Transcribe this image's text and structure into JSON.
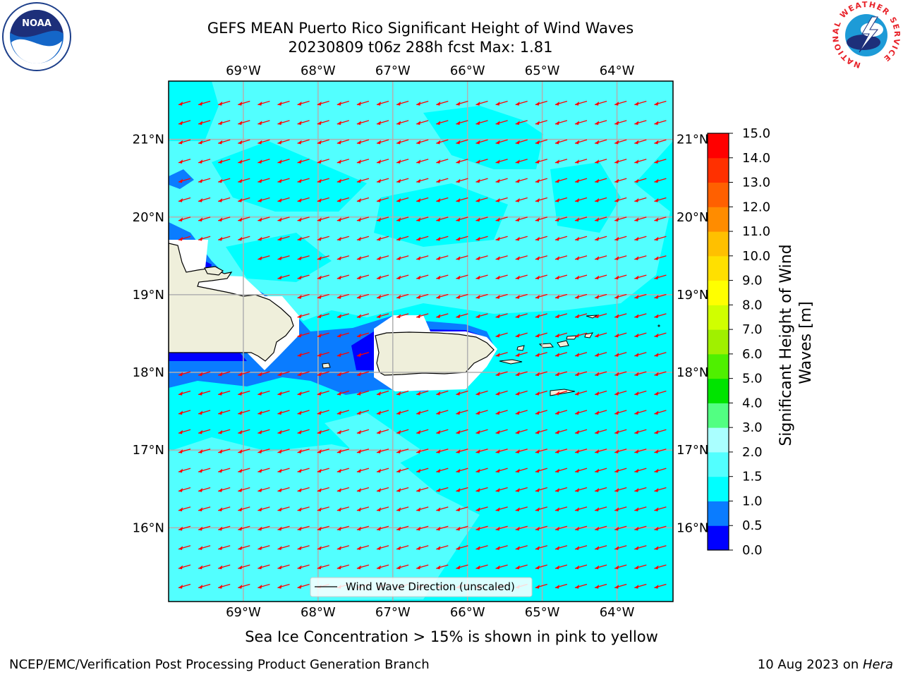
{
  "title": {
    "line1": "GEFS MEAN Puerto Rico Significant Height of Wind Waves",
    "line2": "20230809 t06z 288h fcst   Max: 1.81"
  },
  "logos": {
    "left": "noaa-logo",
    "right": "national-weather-service-logo",
    "nws_ring_text": "NATIONAL WEATHER SERVICE",
    "noaa_text": "NOAA"
  },
  "map": {
    "lon_labels": [
      "69°W",
      "68°W",
      "67°W",
      "66°W",
      "65°W",
      "64°W"
    ],
    "lon_values": [
      -69,
      -68,
      -67,
      -66,
      -65,
      -64
    ],
    "lat_labels": [
      "21°N",
      "20°N",
      "19°N",
      "18°N",
      "17°N",
      "16°N"
    ],
    "lat_values": [
      21,
      20,
      19,
      18,
      17,
      16
    ],
    "extent": {
      "lon": [
        -70,
        -63.25
      ],
      "lat": [
        15.05,
        21.75
      ]
    },
    "gridlines": true,
    "arrow_color": "#ff0000",
    "wind_direction": "from east-northeast (toward west-southwest)"
  },
  "legend": {
    "label": "Wind Wave Direction (unscaled)",
    "placement": "lower-center"
  },
  "colorbar": {
    "label": "Significant Height of Wind Waves [m]",
    "ticks": [
      "0.0",
      "0.5",
      "1.0",
      "1.5",
      "2.0",
      "3.0",
      "4.0",
      "5.0",
      "6.0",
      "7.0",
      "8.0",
      "9.0",
      "10.0",
      "11.0",
      "12.0",
      "13.0",
      "14.0",
      "15.0"
    ],
    "colors": [
      "#0000ff",
      "#0a7cff",
      "#00ffff",
      "#52ffff",
      "#aaffff",
      "#52ff82",
      "#00e400",
      "#4ff000",
      "#a0f000",
      "#d0ff00",
      "#ffff00",
      "#ffe000",
      "#ffc000",
      "#ff8c00",
      "#ff6000",
      "#ff3000",
      "#ff0000"
    ]
  },
  "field_colors": {
    "0.0-0.5": "#0000ff",
    "0.5-1.0": "#0a7cff",
    "1.0-1.5": "#00ffff",
    "1.5-2.0": "#52ffff",
    "land": "#efefdb"
  },
  "footer": {
    "sea_ice": "Sea Ice Concentration > 15% is shown in pink to yellow",
    "credit": "NCEP/EMC/Verification Post Processing Product Generation Branch",
    "date_prefix": "10 Aug 2023 on ",
    "machine": "Hera"
  }
}
